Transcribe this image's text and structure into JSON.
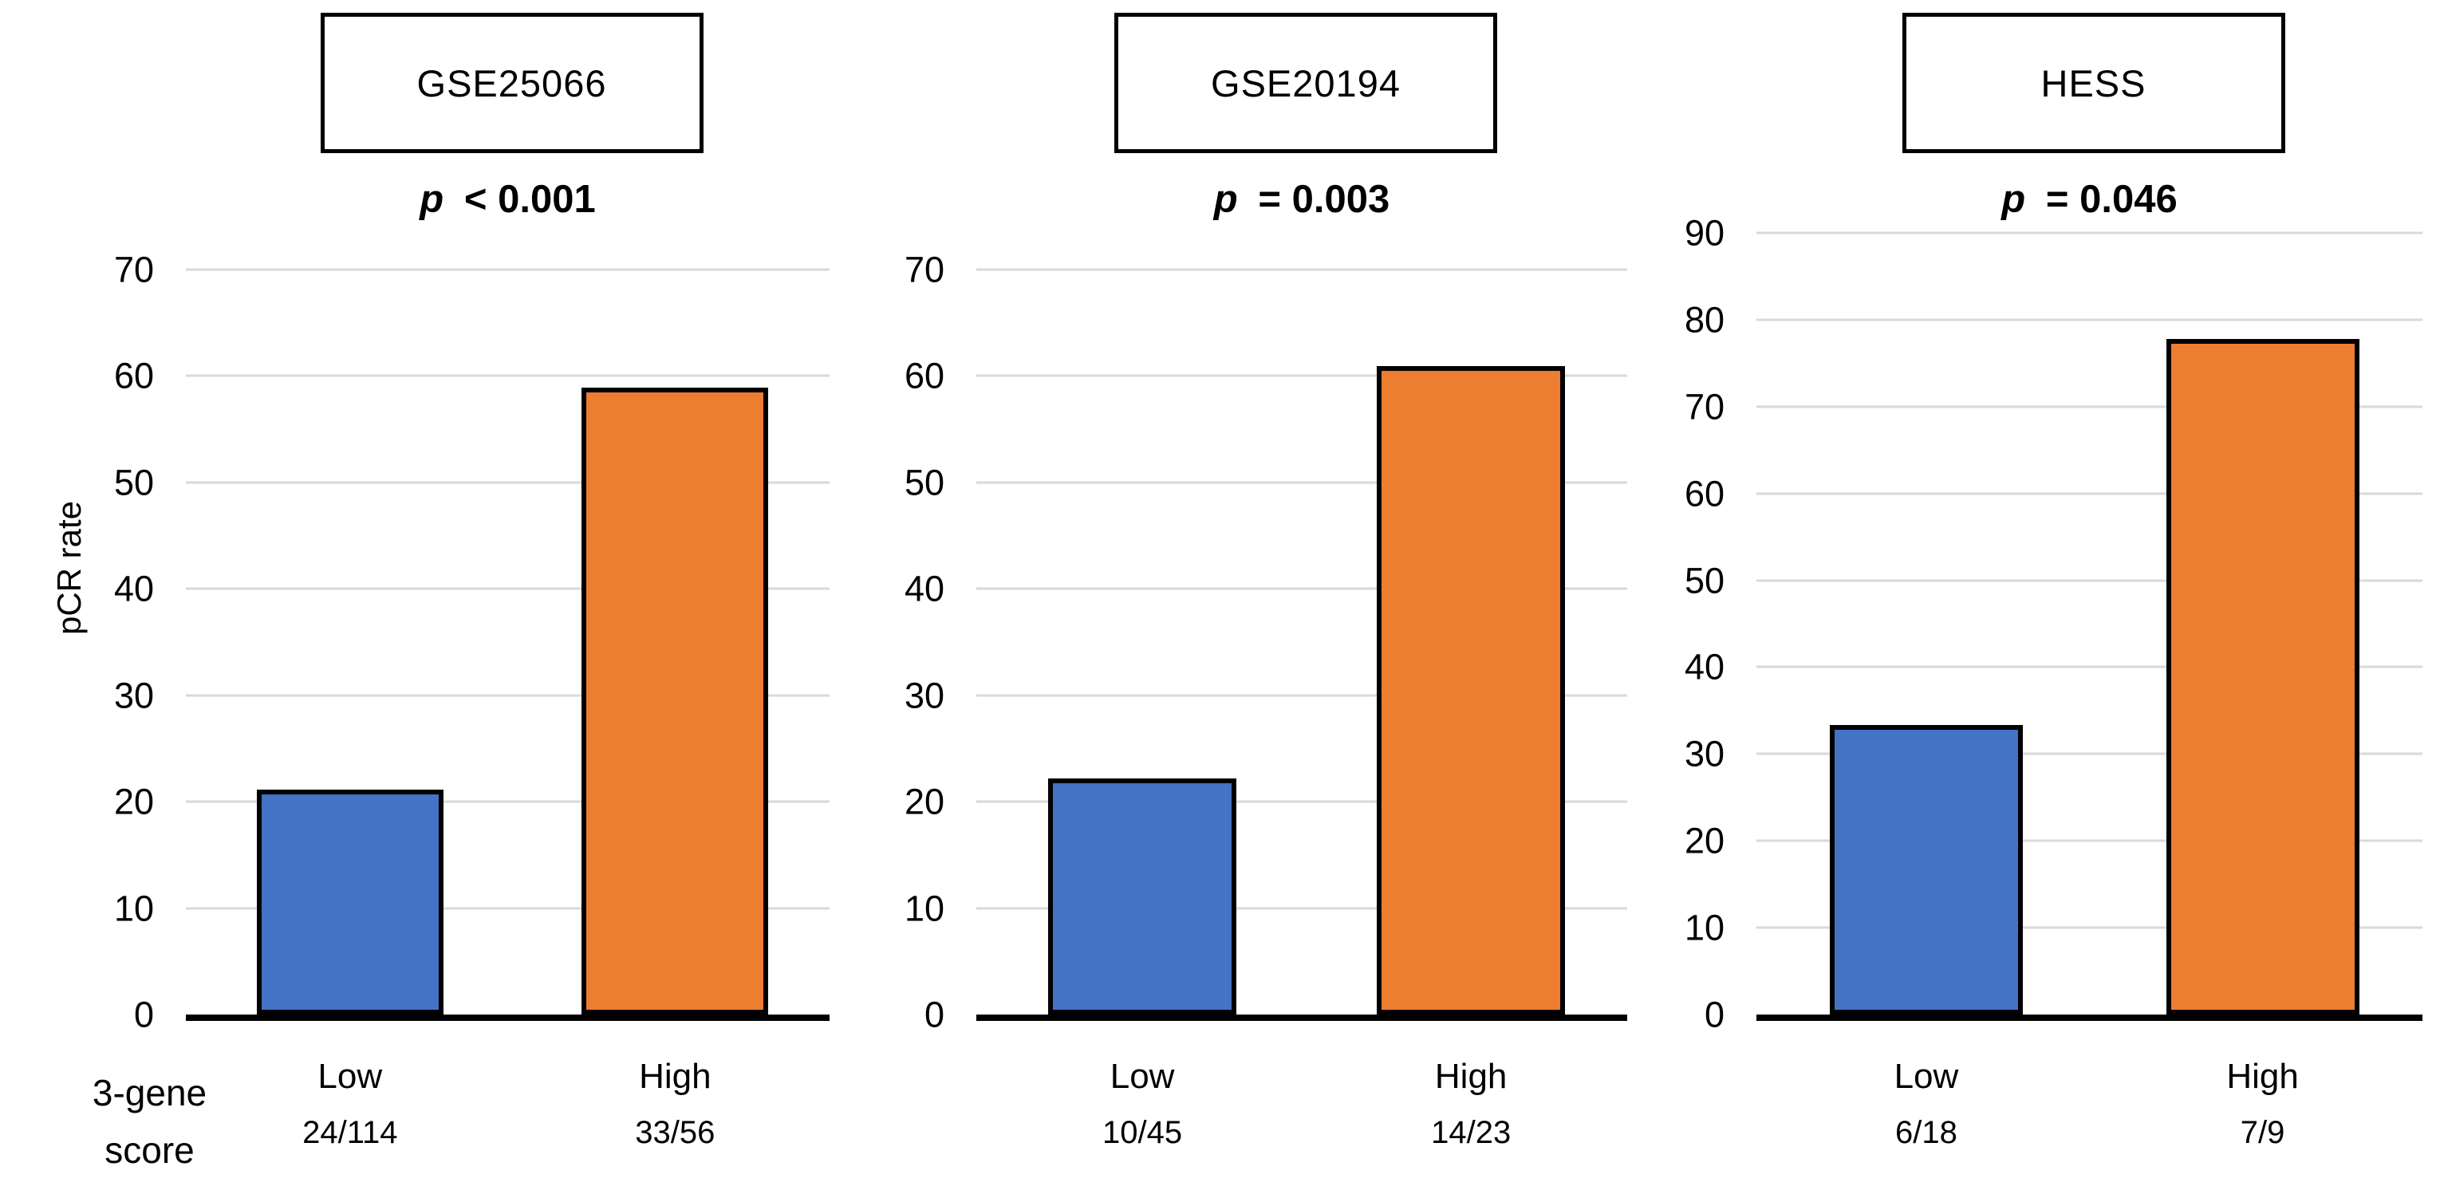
{
  "figure": {
    "y_axis_label": "pCR rate",
    "x_axis_label": {
      "line1": "3-gene",
      "line2": "score"
    }
  },
  "colors": {
    "low_bar": "#4472C4",
    "high_bar": "#ED7D31",
    "bar_outline": "#000000",
    "gridline": "#D9D9D9",
    "axis": "#000000",
    "background": "#FFFFFF"
  },
  "chart_data": [
    {
      "type": "bar",
      "title": "GSE25066",
      "p_symbol": "p",
      "p_rest": "< 0.001",
      "p_text": "p < 0.001",
      "categories": [
        "Low",
        "High"
      ],
      "values": [
        21.1,
        58.9
      ],
      "fractions": [
        "24/114",
        "33/56"
      ],
      "ylabel": "pCR rate",
      "ylim": [
        0,
        70
      ],
      "yticks": [
        0,
        10,
        20,
        30,
        40,
        50,
        60,
        70
      ],
      "bar_colors": [
        "#4472C4",
        "#ED7D31"
      ],
      "grid": true,
      "legend": false
    },
    {
      "type": "bar",
      "title": "GSE20194",
      "p_symbol": "p",
      "p_rest": "= 0.003",
      "p_text": "p = 0.003",
      "categories": [
        "Low",
        "High"
      ],
      "values": [
        22.2,
        60.9
      ],
      "fractions": [
        "10/45",
        "14/23"
      ],
      "ylabel": "",
      "ylim": [
        0,
        70
      ],
      "yticks": [
        0,
        10,
        20,
        30,
        40,
        50,
        60,
        70
      ],
      "bar_colors": [
        "#4472C4",
        "#ED7D31"
      ],
      "grid": true,
      "legend": false
    },
    {
      "type": "bar",
      "title": "HESS",
      "p_symbol": "p",
      "p_rest": "= 0.046",
      "p_text": "p = 0.046",
      "categories": [
        "Low",
        "High"
      ],
      "values": [
        33.3,
        77.8
      ],
      "fractions": [
        "6/18",
        "7/9"
      ],
      "ylabel": "",
      "ylim": [
        0,
        90
      ],
      "yticks": [
        0,
        10,
        20,
        30,
        40,
        50,
        60,
        70,
        80,
        90
      ],
      "bar_colors": [
        "#4472C4",
        "#ED7D31"
      ],
      "grid": true,
      "legend": false
    }
  ]
}
